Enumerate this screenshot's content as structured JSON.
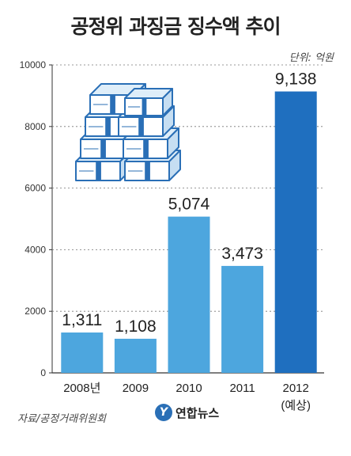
{
  "chart_data": {
    "type": "bar",
    "title": "공정위 과징금 징수액 추이",
    "unit_label": "단위: 억원",
    "categories": [
      "2008년",
      "2009",
      "2010",
      "2011",
      "2012"
    ],
    "category_sublabels": [
      "",
      "",
      "",
      "",
      "(예상)"
    ],
    "values": [
      1311,
      1108,
      5074,
      3473,
      9138
    ],
    "value_labels": [
      "1,311",
      "1,108",
      "5,074",
      "3,473",
      "9,138"
    ],
    "bar_colors": [
      "#4da6de",
      "#4da6de",
      "#4da6de",
      "#4da6de",
      "#1f6fbf"
    ],
    "yticks": [
      0,
      2000,
      4000,
      6000,
      8000,
      10000
    ],
    "ylim": [
      0,
      10000
    ],
    "grid": true
  },
  "footer": {
    "source": "자료/공정거래위원회",
    "logo_mark": "Y",
    "logo_text": "연합뉴스"
  },
  "icons": {
    "illustration": "money-stack-icon"
  }
}
